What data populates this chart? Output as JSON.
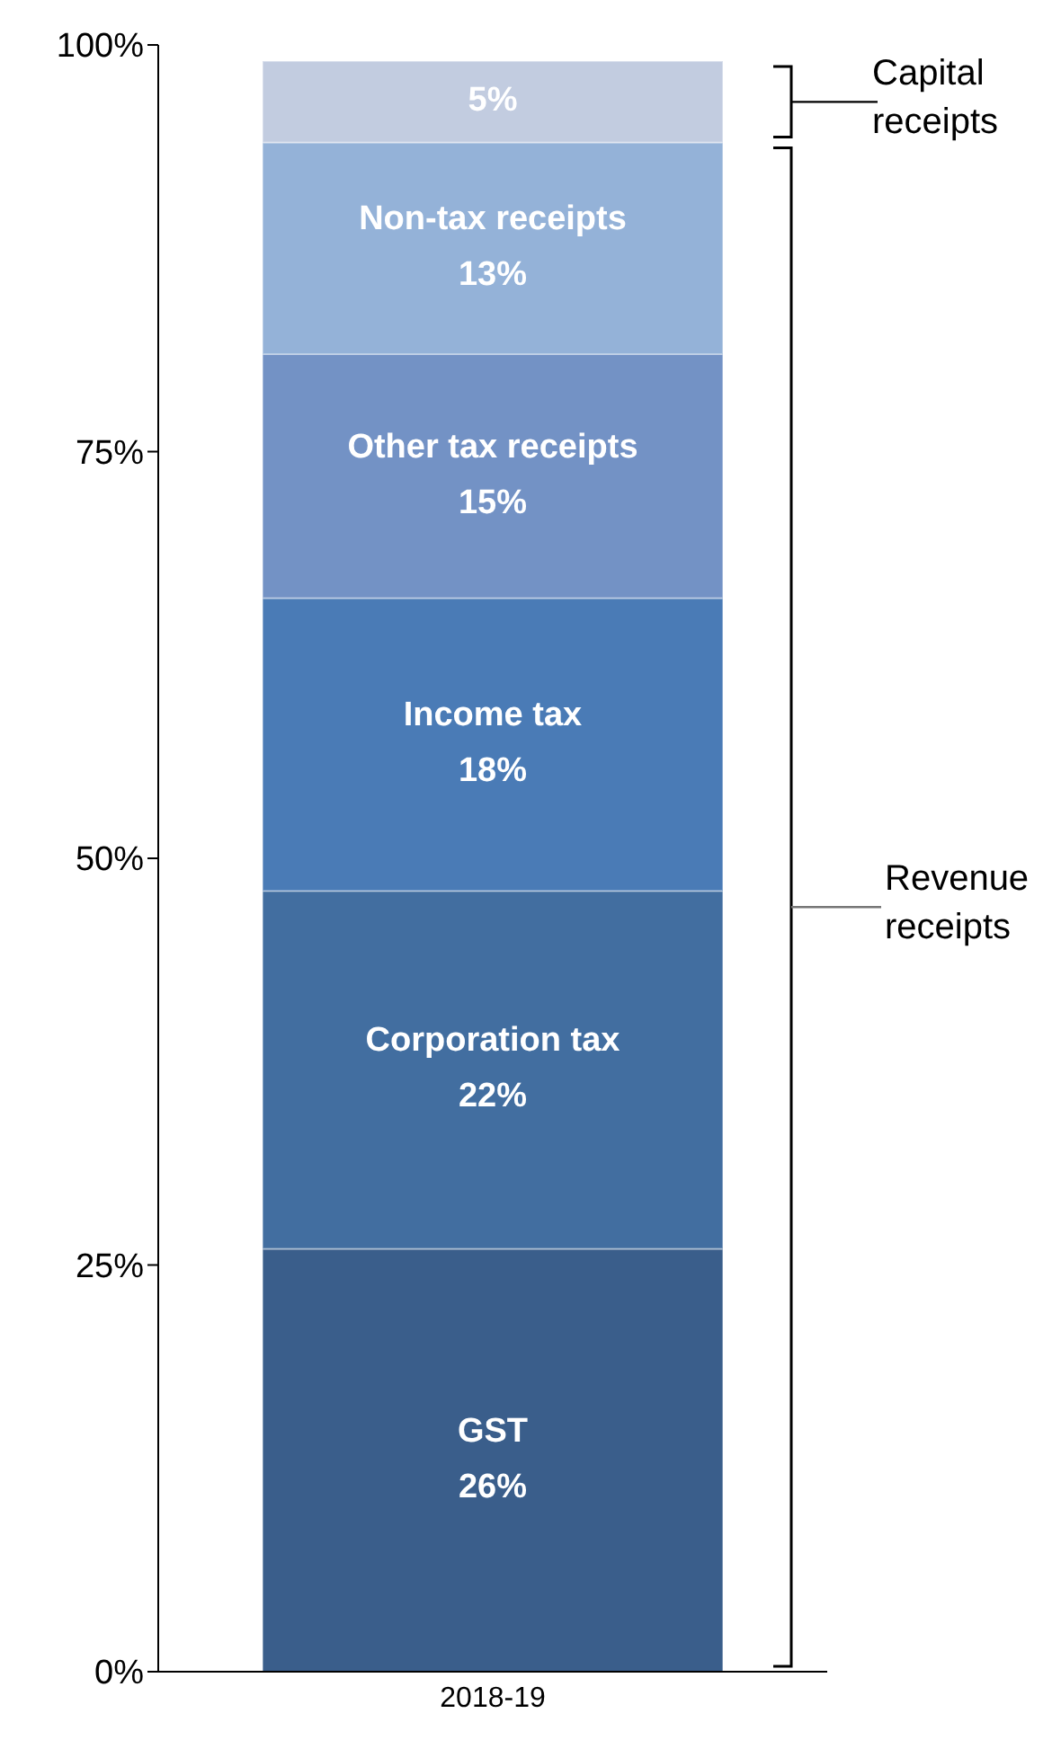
{
  "chart_data": {
    "type": "bar",
    "stacked": true,
    "categories": [
      "2018-19"
    ],
    "series": [
      {
        "name": "GST",
        "color": "#3a5e8b",
        "values": [
          26
        ],
        "value_labels": [
          "26%"
        ]
      },
      {
        "name": "Corporation tax",
        "color": "#426ea0",
        "values": [
          22
        ],
        "value_labels": [
          "22%"
        ]
      },
      {
        "name": "Income tax",
        "color": "#4a7bb6",
        "values": [
          18
        ],
        "value_labels": [
          "18%"
        ]
      },
      {
        "name": "Other tax receipts",
        "color": "#7392c5",
        "values": [
          15
        ],
        "value_labels": [
          "15%"
        ]
      },
      {
        "name": "Non-tax receipts",
        "color": "#94b2d8",
        "values": [
          13
        ],
        "value_labels": [
          "13%"
        ]
      },
      {
        "color": "#c2cce0",
        "values": [
          5
        ],
        "value_labels": [
          "5%"
        ]
      }
    ],
    "ylim": [
      0,
      100
    ],
    "yticks": [
      {
        "value": 0,
        "label": "0%"
      },
      {
        "value": 25,
        "label": "25%"
      },
      {
        "value": 50,
        "label": "50%"
      },
      {
        "value": 75,
        "label": "75%"
      },
      {
        "value": 100,
        "label": "100%"
      }
    ],
    "annotations": [
      "Capital receipts",
      "Revenue receipts"
    ],
    "grid": false,
    "legend": false
  }
}
